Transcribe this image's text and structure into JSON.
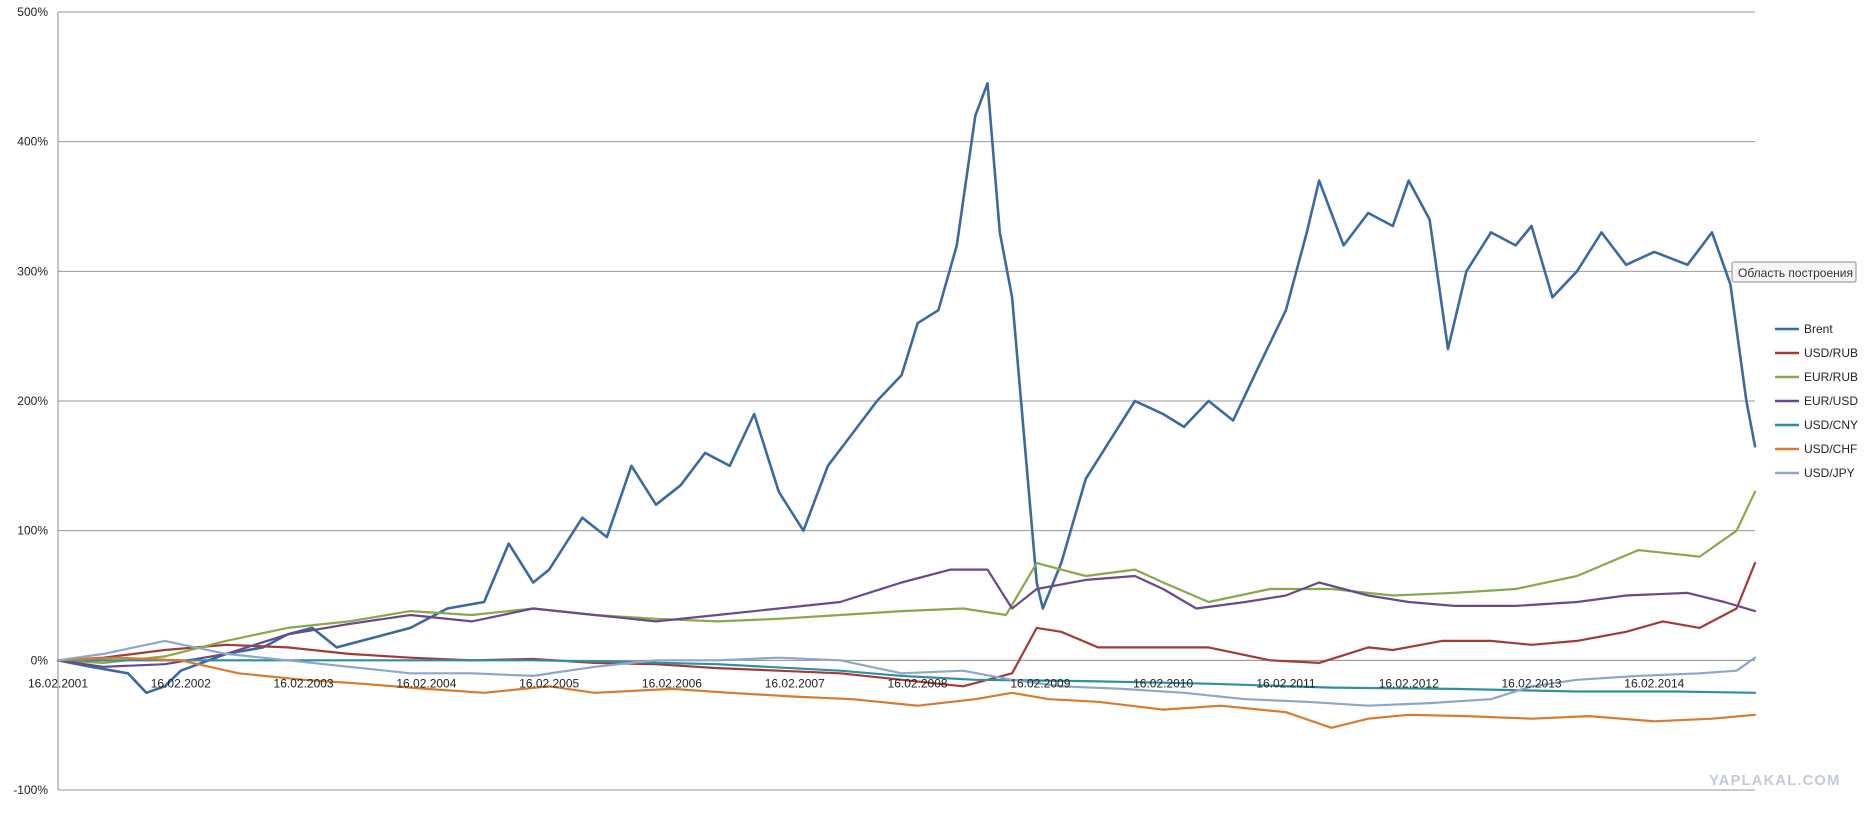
{
  "chart_data": {
    "type": "line",
    "title": "",
    "xlabel": "",
    "ylabel": "",
    "ylim": [
      -100,
      500
    ],
    "yticks": [
      "500%",
      "400%",
      "300%",
      "200%",
      "100%",
      "0%",
      "-100%"
    ],
    "ytick_values": [
      500,
      400,
      300,
      200,
      100,
      0,
      -100
    ],
    "xlim": [
      2001.13,
      2014.95
    ],
    "xticks": [
      "16.02.2001",
      "16.02.2002",
      "16.02.2003",
      "16.02.2004",
      "16.02.2005",
      "16.02.2006",
      "16.02.2007",
      "16.02.2008",
      "16.02.2009",
      "16.02.2010",
      "16.02.2011",
      "16.02.2012",
      "16.02.2013",
      "16.02.2014"
    ],
    "xtick_values": [
      2001.13,
      2002.13,
      2003.13,
      2004.13,
      2005.13,
      2006.13,
      2007.13,
      2008.13,
      2009.13,
      2010.13,
      2011.13,
      2012.13,
      2013.13,
      2014.13
    ],
    "grid": "horizontal",
    "legend_position": "right",
    "tooltip": "Область построения",
    "watermark": "YAPLAKAL.COM",
    "series": [
      {
        "name": "Brent",
        "color": "#3b6aa0",
        "points": [
          [
            2001.13,
            0
          ],
          [
            2001.4,
            -5
          ],
          [
            2001.7,
            -10
          ],
          [
            2001.85,
            -25
          ],
          [
            2002.0,
            -20
          ],
          [
            2002.13,
            -8
          ],
          [
            2002.5,
            5
          ],
          [
            2002.8,
            10
          ],
          [
            2003.0,
            20
          ],
          [
            2003.2,
            25
          ],
          [
            2003.4,
            10
          ],
          [
            2003.6,
            15
          ],
          [
            2003.8,
            20
          ],
          [
            2004.0,
            25
          ],
          [
            2004.3,
            40
          ],
          [
            2004.6,
            45
          ],
          [
            2004.8,
            90
          ],
          [
            2005.0,
            60
          ],
          [
            2005.13,
            70
          ],
          [
            2005.4,
            110
          ],
          [
            2005.6,
            95
          ],
          [
            2005.8,
            150
          ],
          [
            2006.0,
            120
          ],
          [
            2006.2,
            135
          ],
          [
            2006.4,
            160
          ],
          [
            2006.6,
            150
          ],
          [
            2006.8,
            190
          ],
          [
            2007.0,
            130
          ],
          [
            2007.2,
            100
          ],
          [
            2007.4,
            150
          ],
          [
            2007.6,
            175
          ],
          [
            2007.8,
            200
          ],
          [
            2008.0,
            220
          ],
          [
            2008.13,
            260
          ],
          [
            2008.3,
            270
          ],
          [
            2008.45,
            320
          ],
          [
            2008.6,
            420
          ],
          [
            2008.7,
            445
          ],
          [
            2008.8,
            330
          ],
          [
            2008.9,
            280
          ],
          [
            2009.0,
            170
          ],
          [
            2009.1,
            60
          ],
          [
            2009.15,
            40
          ],
          [
            2009.3,
            75
          ],
          [
            2009.5,
            140
          ],
          [
            2009.7,
            170
          ],
          [
            2009.9,
            200
          ],
          [
            2010.13,
            190
          ],
          [
            2010.3,
            180
          ],
          [
            2010.5,
            200
          ],
          [
            2010.7,
            185
          ],
          [
            2010.9,
            225
          ],
          [
            2011.13,
            270
          ],
          [
            2011.3,
            330
          ],
          [
            2011.4,
            370
          ],
          [
            2011.6,
            320
          ],
          [
            2011.8,
            345
          ],
          [
            2012.0,
            335
          ],
          [
            2012.13,
            370
          ],
          [
            2012.3,
            340
          ],
          [
            2012.45,
            240
          ],
          [
            2012.6,
            300
          ],
          [
            2012.8,
            330
          ],
          [
            2013.0,
            320
          ],
          [
            2013.13,
            335
          ],
          [
            2013.3,
            280
          ],
          [
            2013.5,
            300
          ],
          [
            2013.7,
            330
          ],
          [
            2013.9,
            305
          ],
          [
            2014.13,
            315
          ],
          [
            2014.4,
            305
          ],
          [
            2014.6,
            330
          ],
          [
            2014.75,
            290
          ],
          [
            2014.88,
            200
          ],
          [
            2014.95,
            165
          ]
        ]
      },
      {
        "name": "USD/RUB",
        "color": "#a23b36",
        "points": [
          [
            2001.13,
            0
          ],
          [
            2001.5,
            2
          ],
          [
            2002.0,
            8
          ],
          [
            2002.5,
            12
          ],
          [
            2003.0,
            10
          ],
          [
            2003.5,
            5
          ],
          [
            2004.0,
            2
          ],
          [
            2004.5,
            0
          ],
          [
            2005.0,
            1
          ],
          [
            2005.5,
            -2
          ],
          [
            2006.0,
            -3
          ],
          [
            2006.5,
            -6
          ],
          [
            2007.0,
            -8
          ],
          [
            2007.5,
            -10
          ],
          [
            2008.0,
            -15
          ],
          [
            2008.5,
            -20
          ],
          [
            2008.9,
            -10
          ],
          [
            2009.1,
            25
          ],
          [
            2009.3,
            22
          ],
          [
            2009.6,
            10
          ],
          [
            2010.0,
            10
          ],
          [
            2010.5,
            10
          ],
          [
            2011.0,
            0
          ],
          [
            2011.4,
            -2
          ],
          [
            2011.8,
            10
          ],
          [
            2012.0,
            8
          ],
          [
            2012.4,
            15
          ],
          [
            2012.8,
            15
          ],
          [
            2013.13,
            12
          ],
          [
            2013.5,
            15
          ],
          [
            2013.9,
            22
          ],
          [
            2014.2,
            30
          ],
          [
            2014.5,
            25
          ],
          [
            2014.8,
            40
          ],
          [
            2014.95,
            75
          ]
        ]
      },
      {
        "name": "EUR/RUB",
        "color": "#8aa84a",
        "points": [
          [
            2001.13,
            0
          ],
          [
            2001.5,
            -2
          ],
          [
            2002.0,
            3
          ],
          [
            2002.5,
            15
          ],
          [
            2003.0,
            25
          ],
          [
            2003.5,
            30
          ],
          [
            2004.0,
            38
          ],
          [
            2004.5,
            35
          ],
          [
            2005.0,
            40
          ],
          [
            2005.5,
            35
          ],
          [
            2006.0,
            32
          ],
          [
            2006.5,
            30
          ],
          [
            2007.0,
            32
          ],
          [
            2007.5,
            35
          ],
          [
            2008.0,
            38
          ],
          [
            2008.5,
            40
          ],
          [
            2008.85,
            35
          ],
          [
            2009.1,
            75
          ],
          [
            2009.5,
            65
          ],
          [
            2009.9,
            70
          ],
          [
            2010.13,
            60
          ],
          [
            2010.5,
            45
          ],
          [
            2011.0,
            55
          ],
          [
            2011.5,
            55
          ],
          [
            2012.0,
            50
          ],
          [
            2012.5,
            52
          ],
          [
            2013.0,
            55
          ],
          [
            2013.5,
            65
          ],
          [
            2014.0,
            85
          ],
          [
            2014.5,
            80
          ],
          [
            2014.8,
            100
          ],
          [
            2014.95,
            130
          ]
        ]
      },
      {
        "name": "EUR/USD",
        "color": "#6a4a8a",
        "points": [
          [
            2001.13,
            0
          ],
          [
            2001.5,
            -5
          ],
          [
            2002.0,
            -3
          ],
          [
            2002.5,
            5
          ],
          [
            2003.0,
            20
          ],
          [
            2003.5,
            28
          ],
          [
            2004.0,
            35
          ],
          [
            2004.5,
            30
          ],
          [
            2005.0,
            40
          ],
          [
            2005.5,
            35
          ],
          [
            2006.0,
            30
          ],
          [
            2006.5,
            35
          ],
          [
            2007.0,
            40
          ],
          [
            2007.5,
            45
          ],
          [
            2008.0,
            60
          ],
          [
            2008.4,
            70
          ],
          [
            2008.7,
            70
          ],
          [
            2008.9,
            40
          ],
          [
            2009.1,
            55
          ],
          [
            2009.5,
            62
          ],
          [
            2009.9,
            65
          ],
          [
            2010.13,
            55
          ],
          [
            2010.4,
            40
          ],
          [
            2010.8,
            45
          ],
          [
            2011.13,
            50
          ],
          [
            2011.4,
            60
          ],
          [
            2011.8,
            50
          ],
          [
            2012.13,
            45
          ],
          [
            2012.5,
            42
          ],
          [
            2013.0,
            42
          ],
          [
            2013.5,
            45
          ],
          [
            2013.9,
            50
          ],
          [
            2014.4,
            52
          ],
          [
            2014.7,
            45
          ],
          [
            2014.95,
            38
          ]
        ]
      },
      {
        "name": "USD/CNY",
        "color": "#2f8fa3",
        "points": [
          [
            2001.13,
            0
          ],
          [
            2002.0,
            0
          ],
          [
            2003.0,
            0
          ],
          [
            2004.0,
            0
          ],
          [
            2005.0,
            0
          ],
          [
            2005.6,
            -1
          ],
          [
            2006.5,
            -3
          ],
          [
            2007.5,
            -8
          ],
          [
            2008.0,
            -12
          ],
          [
            2008.6,
            -15
          ],
          [
            2009.5,
            -16
          ],
          [
            2010.5,
            -18
          ],
          [
            2011.5,
            -21
          ],
          [
            2012.5,
            -22
          ],
          [
            2013.5,
            -24
          ],
          [
            2014.3,
            -24
          ],
          [
            2014.95,
            -25
          ]
        ]
      },
      {
        "name": "USD/CHF",
        "color": "#d97b2e",
        "points": [
          [
            2001.13,
            0
          ],
          [
            2001.6,
            2
          ],
          [
            2002.13,
            0
          ],
          [
            2002.6,
            -10
          ],
          [
            2003.13,
            -15
          ],
          [
            2003.6,
            -18
          ],
          [
            2004.13,
            -22
          ],
          [
            2004.6,
            -25
          ],
          [
            2005.13,
            -20
          ],
          [
            2005.5,
            -25
          ],
          [
            2006.13,
            -22
          ],
          [
            2006.6,
            -25
          ],
          [
            2007.13,
            -28
          ],
          [
            2007.6,
            -30
          ],
          [
            2008.13,
            -35
          ],
          [
            2008.6,
            -30
          ],
          [
            2008.9,
            -25
          ],
          [
            2009.2,
            -30
          ],
          [
            2009.6,
            -32
          ],
          [
            2010.13,
            -38
          ],
          [
            2010.6,
            -35
          ],
          [
            2011.13,
            -40
          ],
          [
            2011.5,
            -52
          ],
          [
            2011.8,
            -45
          ],
          [
            2012.13,
            -42
          ],
          [
            2012.6,
            -43
          ],
          [
            2013.13,
            -45
          ],
          [
            2013.6,
            -43
          ],
          [
            2014.13,
            -47
          ],
          [
            2014.6,
            -45
          ],
          [
            2014.95,
            -42
          ]
        ]
      },
      {
        "name": "USD/JPY",
        "color": "#8ea7c8",
        "points": [
          [
            2001.13,
            0
          ],
          [
            2001.5,
            5
          ],
          [
            2002.0,
            15
          ],
          [
            2002.5,
            5
          ],
          [
            2003.0,
            0
          ],
          [
            2003.5,
            -5
          ],
          [
            2004.0,
            -10
          ],
          [
            2004.5,
            -10
          ],
          [
            2005.0,
            -12
          ],
          [
            2005.5,
            -5
          ],
          [
            2006.0,
            0
          ],
          [
            2006.5,
            0
          ],
          [
            2007.0,
            2
          ],
          [
            2007.5,
            0
          ],
          [
            2008.0,
            -10
          ],
          [
            2008.5,
            -8
          ],
          [
            2008.9,
            -15
          ],
          [
            2009.3,
            -20
          ],
          [
            2009.8,
            -22
          ],
          [
            2010.3,
            -25
          ],
          [
            2010.8,
            -30
          ],
          [
            2011.3,
            -32
          ],
          [
            2011.8,
            -35
          ],
          [
            2012.3,
            -33
          ],
          [
            2012.8,
            -30
          ],
          [
            2013.13,
            -20
          ],
          [
            2013.5,
            -15
          ],
          [
            2014.0,
            -12
          ],
          [
            2014.5,
            -10
          ],
          [
            2014.8,
            -8
          ],
          [
            2014.95,
            2
          ]
        ]
      }
    ]
  }
}
